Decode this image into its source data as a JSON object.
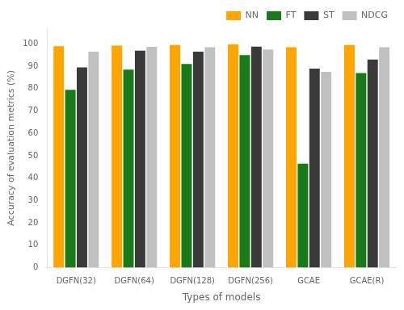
{
  "chart_data": {
    "type": "bar",
    "categories": [
      "DGFN(32)",
      "DGFN(64)",
      "DGFN(128)",
      "DGFN(256)",
      "GCAE",
      "GCAE(R)"
    ],
    "series": [
      {
        "name": "NN",
        "color": "#FFA500",
        "values": [
          99.0,
          99.2,
          99.5,
          99.8,
          98.5,
          99.5
        ]
      },
      {
        "name": "FT",
        "color": "#1A7A1A",
        "values": [
          79.5,
          88.5,
          91.0,
          95.0,
          46.5,
          87.0
        ]
      },
      {
        "name": "ST",
        "color": "#3A3A3A",
        "values": [
          89.5,
          97.0,
          96.5,
          98.8,
          89.0,
          93.0
        ]
      },
      {
        "name": "NDCG",
        "color": "#C0C0C0",
        "values": [
          96.5,
          98.7,
          98.5,
          97.5,
          87.5,
          98.5
        ]
      }
    ],
    "xlabel": "Types of models",
    "ylabel": "Accuracy of evaluation metrics (%)",
    "ylim": [
      0,
      107
    ],
    "yticks": [
      0,
      10,
      20,
      30,
      40,
      50,
      60,
      70,
      80,
      90,
      100
    ],
    "grid": false,
    "legend": "upper right"
  }
}
